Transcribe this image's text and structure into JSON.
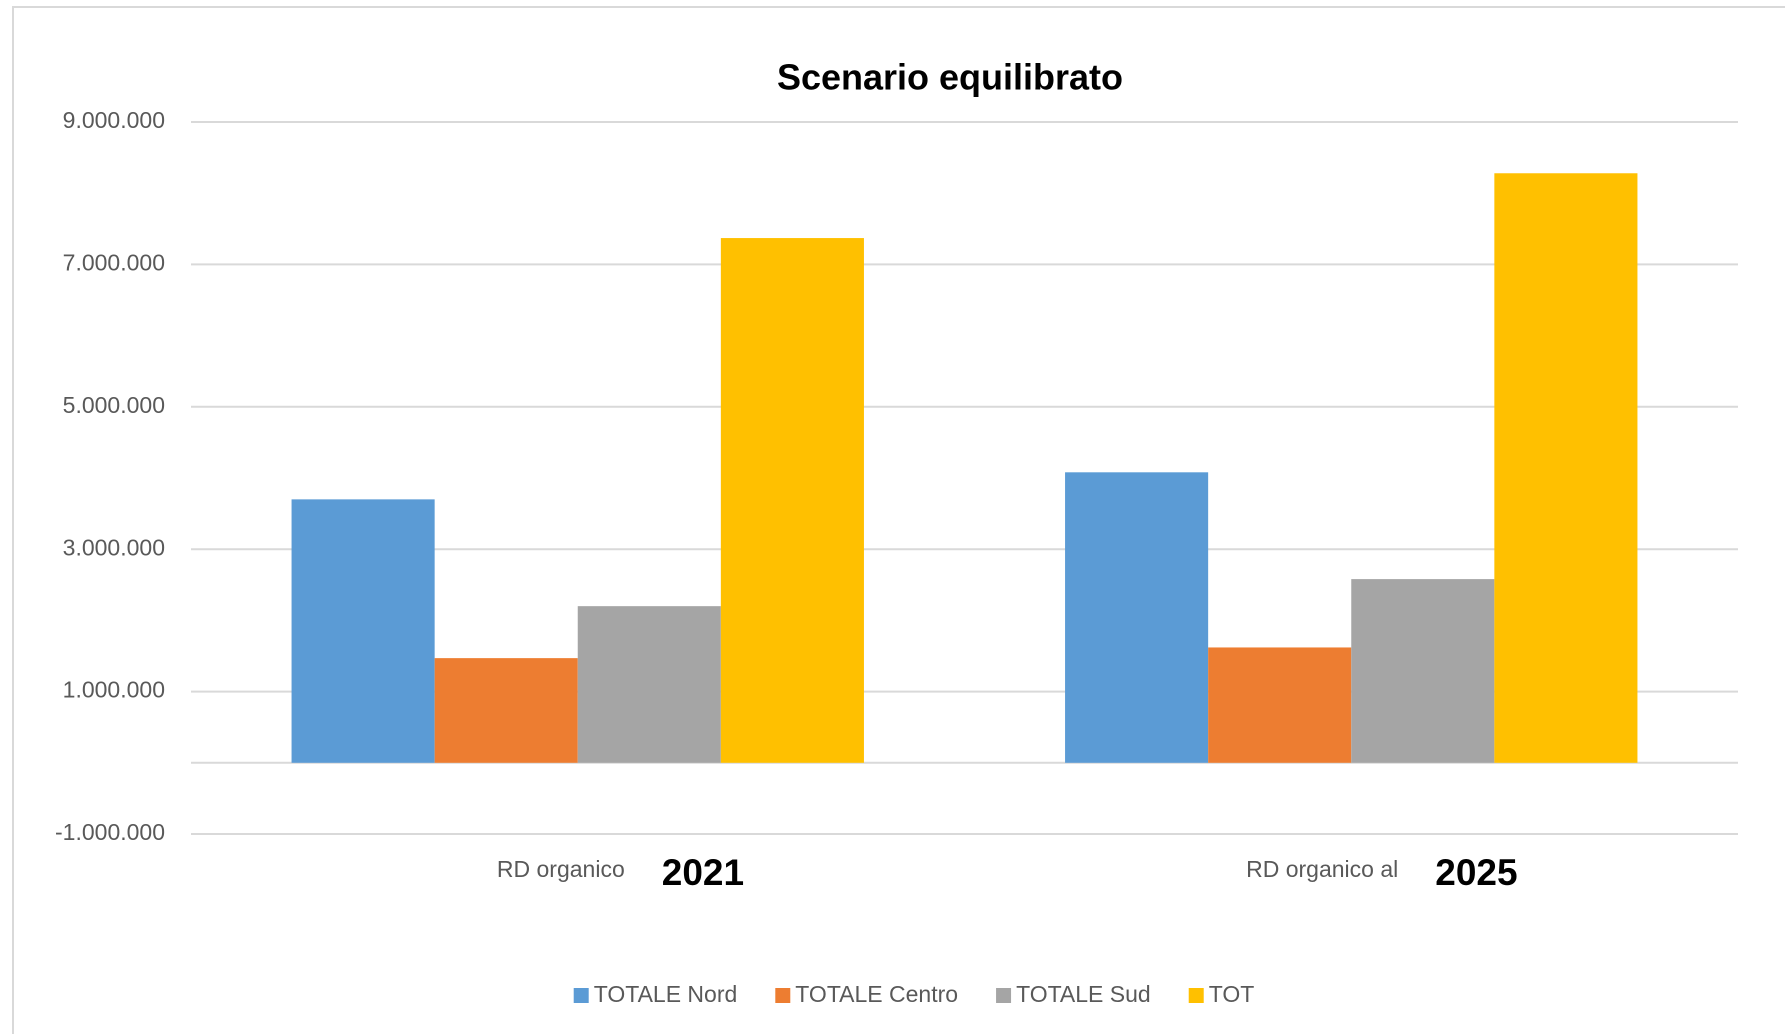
{
  "chart_data": {
    "type": "bar",
    "title": "Scenario equilibrato",
    "categories": [
      "RD organico",
      "RD organico al"
    ],
    "annotations": [
      "2021",
      "2025"
    ],
    "series": [
      {
        "name": "TOTALE Nord",
        "color": "#5b9bd5",
        "values": [
          3700000,
          4080000
        ]
      },
      {
        "name": "TOTALE Centro",
        "color": "#ed7d31",
        "values": [
          1470000,
          1620000
        ]
      },
      {
        "name": "TOTALE Sud",
        "color": "#a5a5a5",
        "values": [
          2200000,
          2580000
        ]
      },
      {
        "name": "TOT",
        "color": "#ffc000",
        "values": [
          7370000,
          8280000
        ]
      }
    ],
    "ylim": [
      -1000000,
      9000000
    ],
    "yticks": [
      {
        "value": -1000000,
        "label": "-1.000.000"
      },
      {
        "value": 1000000,
        "label": "1.000.000"
      },
      {
        "value": 3000000,
        "label": "3.000.000"
      },
      {
        "value": 5000000,
        "label": "5.000.000"
      },
      {
        "value": 7000000,
        "label": "7.000.000"
      },
      {
        "value": 9000000,
        "label": "9.000.000"
      }
    ],
    "grid": true,
    "legend": "bottom"
  }
}
